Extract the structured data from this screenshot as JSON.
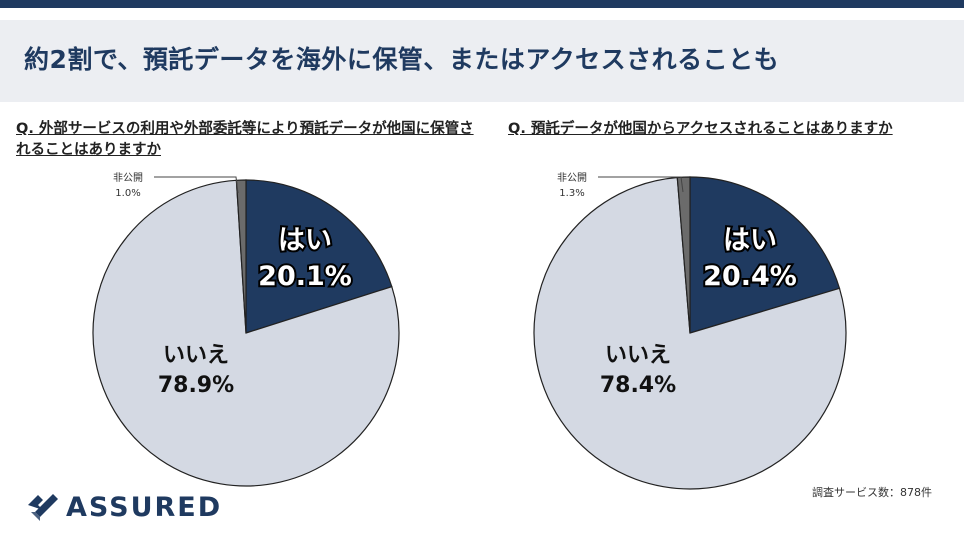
{
  "header": {
    "title": "約2割で、預託データを海外に保管、またはアクセスされることも"
  },
  "chart_data": [
    {
      "type": "pie",
      "title": "Q. 外部サービスの利用や外部委託等により預託データが他国に保管されることはありますか",
      "slices": [
        {
          "label": "はい",
          "value": 20.1,
          "display": "20.1%"
        },
        {
          "label": "いいえ",
          "value": 78.9,
          "display": "78.9%"
        },
        {
          "label": "非公開",
          "value": 1.0,
          "display": "1.0%"
        }
      ]
    },
    {
      "type": "pie",
      "title": "Q. 預託データが他国からアクセスされることはありますか",
      "slices": [
        {
          "label": "はい",
          "value": 20.4,
          "display": "20.4%"
        },
        {
          "label": "いいえ",
          "value": 78.4,
          "display": "78.4%"
        },
        {
          "label": "非公開",
          "value": 1.3,
          "display": "1.3%"
        }
      ]
    }
  ],
  "footer": {
    "note": "調査サービス数：878件",
    "logo": "ASSURED"
  },
  "colors": {
    "yes": "#1f3a60",
    "no": "#d4d9e3",
    "undisclosed": "#6b6b6b",
    "accent": "#1f3a60"
  }
}
